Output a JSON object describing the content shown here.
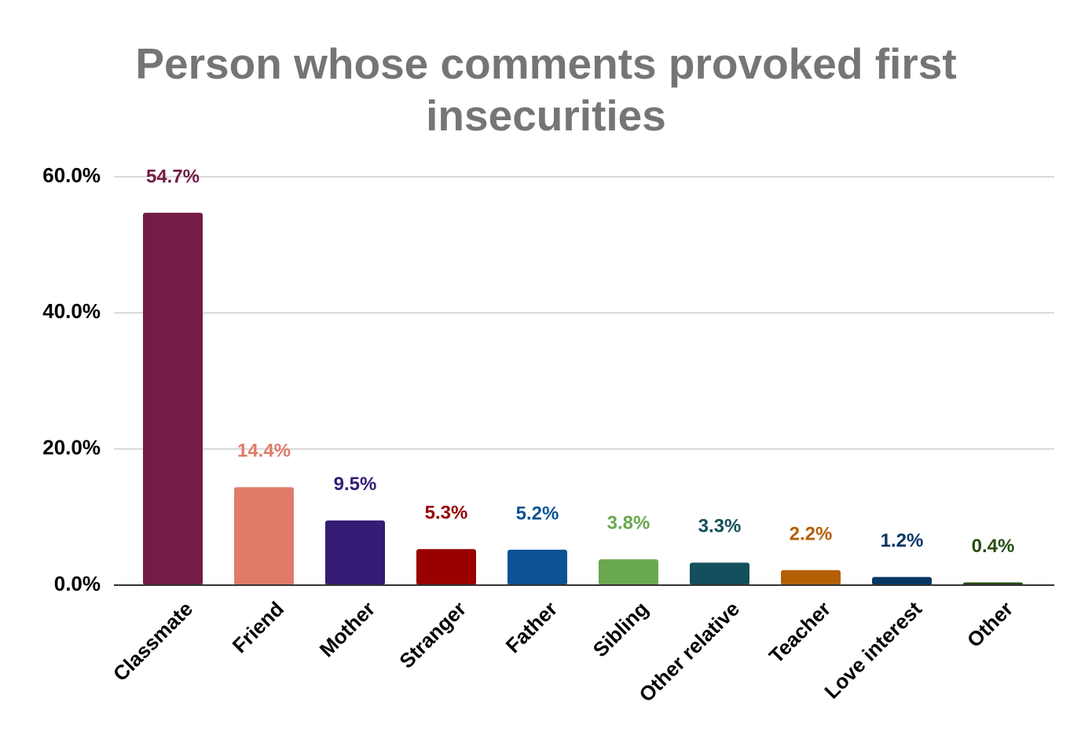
{
  "chart_data": {
    "type": "bar",
    "title": "Person whose comments provoked first insecurities",
    "categories": [
      "Classmate",
      "Friend",
      "Mother",
      "Stranger",
      "Father",
      "Sibling",
      "Other relative",
      "Teacher",
      "Love interest",
      "Other"
    ],
    "values": [
      54.7,
      14.4,
      9.5,
      5.3,
      5.2,
      3.8,
      3.3,
      2.2,
      1.2,
      0.4
    ],
    "value_labels": [
      "54.7%",
      "14.4%",
      "9.5%",
      "5.3%",
      "5.2%",
      "3.8%",
      "3.3%",
      "2.2%",
      "1.2%",
      "0.4%"
    ],
    "colors": [
      "#741b47",
      "#e07b6a",
      "#351c75",
      "#990000",
      "#0b5394",
      "#6aa84f",
      "#134f5c",
      "#b45f06",
      "#073763",
      "#274e13"
    ],
    "ylim": [
      0,
      60
    ],
    "yticks": [
      {
        "value": 0,
        "label": "0.0%"
      },
      {
        "value": 20,
        "label": "20.0%"
      },
      {
        "value": 40,
        "label": "40.0%"
      },
      {
        "value": 60,
        "label": "60.0%"
      }
    ],
    "grid": true
  }
}
